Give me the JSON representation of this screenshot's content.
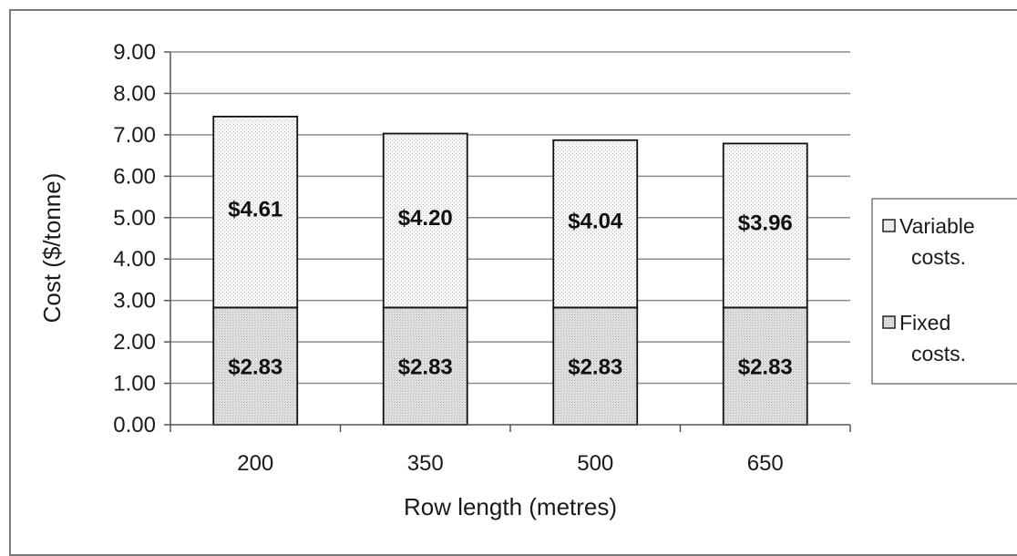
{
  "chart_data": {
    "type": "bar",
    "stacked": true,
    "categories": [
      "200",
      "350",
      "500",
      "650"
    ],
    "series": [
      {
        "name": "Fixed costs.",
        "values": [
          2.83,
          2.83,
          2.83,
          2.83
        ],
        "labels": [
          "$2.83",
          "$2.83",
          "$2.83",
          "$2.83"
        ],
        "color": "#e6e6e6"
      },
      {
        "name": "Variable costs.",
        "values": [
          4.61,
          4.2,
          4.04,
          3.96
        ],
        "labels": [
          "$4.61",
          "$4.20",
          "$4.04",
          "$3.96"
        ],
        "color": "#f4f4f4"
      }
    ],
    "xlabel": "Row length  (metres)",
    "ylabel": "Cost  ($/tonne)",
    "ylim": [
      0,
      9
    ],
    "yticks": [
      "0.00",
      "1.00",
      "2.00",
      "3.00",
      "4.00",
      "5.00",
      "6.00",
      "7.00",
      "8.00",
      "9.00"
    ],
    "grid": true,
    "legend_position": "right",
    "legend": [
      {
        "line1": "Variable",
        "line2": "costs."
      },
      {
        "line1": "Fixed",
        "line2": "costs."
      }
    ]
  }
}
